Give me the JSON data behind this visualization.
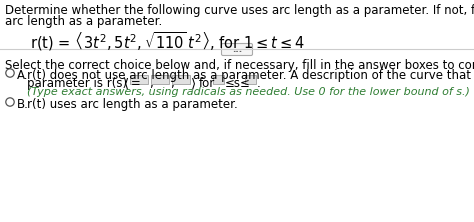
{
  "background_color": "#ffffff",
  "title_line1": "Determine whether the following curve uses arc length as a parameter. If not, find a description that uses",
  "title_line2": "arc length as a parameter.",
  "divider_dots": "...",
  "instruction": "Select the correct choice below and, if necessary, fill in the answer boxes to complete your choice.",
  "option_a_text1": "r(t) does not use arc length as a parameter. A description of the curve that uses arc length as a",
  "option_a_text2": "parameter is r(s) =",
  "option_a_for": "for",
  "option_a_leq": "≤s≤",
  "option_a_dot": ".",
  "option_a_hint": "(Type exact answers, using radicals as needed. Use 0 for the lower bound of s.)",
  "option_b_text": "r(t) uses arc length as a parameter.",
  "hint_color": "#2e7d32",
  "text_color": "#000000",
  "gray_color": "#888888",
  "box_fill": "#e0e0e0",
  "font_size": 8.5,
  "font_size_formula": 10.5
}
